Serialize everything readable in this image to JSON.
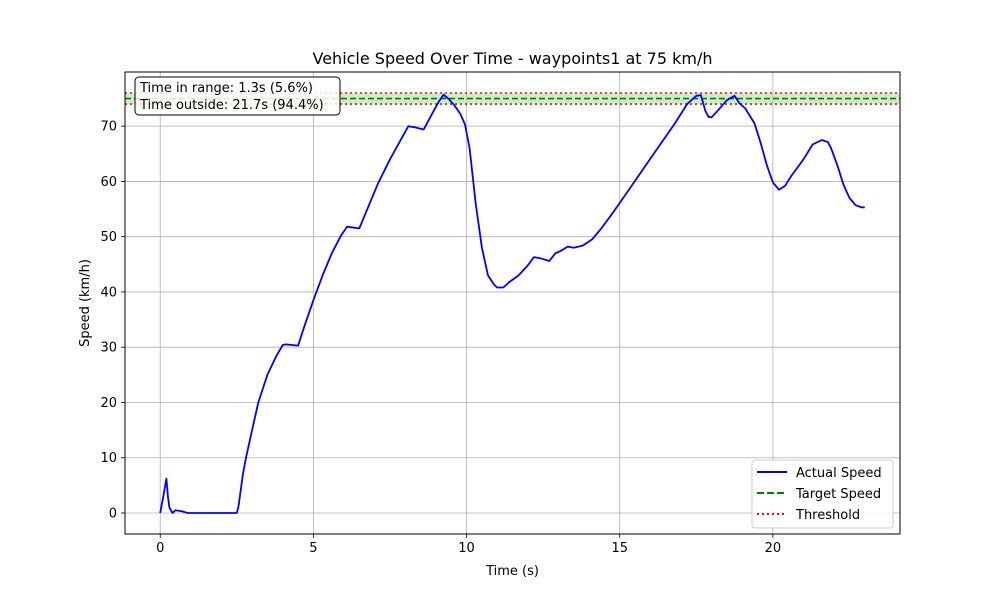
{
  "chart_data": {
    "type": "line",
    "title": "Vehicle Speed Over Time - waypoints1 at 75 km/h",
    "xlabel": "Time (s)",
    "ylabel": "Speed (km/h)",
    "xlim": [
      -1.15,
      24.15
    ],
    "ylim": [
      -3.8,
      79.8
    ],
    "xticks": [
      0,
      5,
      10,
      15,
      20
    ],
    "yticks": [
      0,
      10,
      20,
      30,
      40,
      50,
      60,
      70
    ],
    "grid": true,
    "legend_position": "lower-right",
    "target_speed": 75,
    "threshold_upper": 76,
    "threshold_lower": 74,
    "annotation_lines": [
      "Time in range: 1.3s (5.6%)",
      "Time outside: 21.7s (94.4%)"
    ],
    "series": [
      {
        "name": "Actual Speed",
        "color": "#0000ff",
        "x": [
          0,
          0.1,
          0.2,
          0.25,
          0.3,
          0.4,
          0.5,
          0.7,
          0.9,
          1.2,
          1.5,
          2.0,
          2.5,
          2.55,
          2.6,
          2.7,
          2.8,
          3.0,
          3.2,
          3.5,
          3.8,
          4.0,
          4.1,
          4.5,
          4.7,
          5.0,
          5.3,
          5.6,
          5.9,
          6.1,
          6.5,
          6.8,
          7.1,
          7.5,
          7.8,
          8.1,
          8.3,
          8.6,
          8.9,
          9.1,
          9.25,
          9.4,
          9.6,
          9.8,
          9.95,
          10.1,
          10.3,
          10.5,
          10.7,
          10.9,
          11.0,
          11.2,
          11.4,
          11.7,
          12.0,
          12.2,
          12.4,
          12.7,
          12.9,
          13.1,
          13.3,
          13.5,
          13.8,
          14.1,
          14.4,
          14.8,
          15.3,
          15.8,
          16.3,
          16.8,
          17.2,
          17.5,
          17.65,
          17.8,
          17.9,
          18.0,
          18.2,
          18.5,
          18.75,
          18.9,
          19.1,
          19.4,
          19.6,
          19.8,
          20.0,
          20.2,
          20.4,
          20.6,
          20.8,
          21.0,
          21.3,
          21.6,
          21.8,
          21.9,
          22.1,
          22.3,
          22.5,
          22.7,
          22.9,
          23.0
        ],
        "values": [
          0,
          3,
          6.2,
          3,
          1,
          0,
          0.5,
          0.3,
          0,
          0,
          0,
          0,
          0,
          1,
          3,
          7,
          10,
          15,
          20,
          25,
          28.5,
          30.4,
          30.5,
          30.3,
          33.7,
          38.5,
          43,
          47,
          50.2,
          51.8,
          51.5,
          55.5,
          59.5,
          64,
          67,
          70,
          69.8,
          69.4,
          72.5,
          74.5,
          75.7,
          75,
          73.8,
          72.2,
          70.3,
          66,
          56,
          48,
          43,
          41.3,
          40.8,
          40.8,
          41.8,
          43,
          44.8,
          46.3,
          46.1,
          45.6,
          47,
          47.5,
          48.2,
          48,
          48.4,
          49.5,
          51.5,
          54.5,
          58.5,
          62.5,
          66.5,
          70.5,
          74,
          75.5,
          75.6,
          72.7,
          71.7,
          71.6,
          72.8,
          74.7,
          75.5,
          74.2,
          73.2,
          70.5,
          67,
          63,
          59.8,
          58.5,
          59.2,
          61,
          62.5,
          64,
          66.7,
          67.5,
          67.1,
          66,
          63,
          59.5,
          57,
          55.7,
          55.3,
          55.3
        ]
      },
      {
        "name": "Target Speed",
        "color": "#008000"
      },
      {
        "name": "Threshold",
        "color": "#ff0000"
      }
    ]
  }
}
